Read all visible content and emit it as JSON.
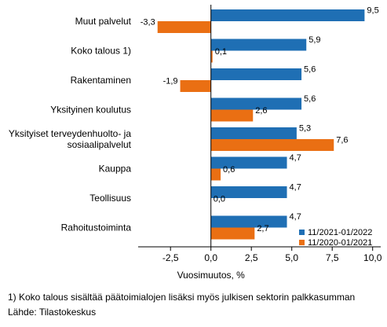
{
  "chart_data": {
    "type": "bar",
    "orientation": "horizontal",
    "categories": [
      [
        "Muut palvelut"
      ],
      [
        "Koko talous 1)"
      ],
      [
        "Rakentaminen"
      ],
      [
        "Yksityinen koulutus"
      ],
      [
        "Yksityiset terveydenhuolto- ja",
        "sosiaalipalvelut"
      ],
      [
        "Kauppa"
      ],
      [
        "Teollisuus"
      ],
      [
        "Rahoitustoiminta"
      ]
    ],
    "series": [
      {
        "name": "11/2021-01/2022",
        "color": "#1f6fb4",
        "values": [
          9.5,
          5.9,
          5.6,
          5.6,
          5.3,
          4.7,
          4.7,
          4.7
        ],
        "labels": [
          "9,5",
          "5,9",
          "5,6",
          "5,6",
          "5,3",
          "4,7",
          "4,7",
          "4,7"
        ]
      },
      {
        "name": "11/2020-01/2021",
        "color": "#ea6f13",
        "values": [
          -3.3,
          0.1,
          -1.9,
          2.6,
          7.6,
          0.6,
          0.0,
          2.7
        ],
        "labels": [
          "-3,3",
          "0,1",
          "-1,9",
          "2,6",
          "7,6",
          "0,6",
          "0,0",
          "2,7"
        ]
      }
    ],
    "xlim": [
      -4.5,
      10.5
    ],
    "xticks": [
      -2.5,
      0,
      2.5,
      5,
      7.5,
      10
    ],
    "xtick_labels": [
      "-2,5",
      "0,0",
      "2,5",
      "5,0",
      "7,5",
      "10,0"
    ],
    "xlabel": "Vuosimuutos, %",
    "ylabel": "",
    "title": "",
    "grid": false,
    "legend_position": "bottom-right"
  },
  "footnotes": {
    "note": "1) Koko talous sisältää päätoimialojen lisäksi myös julkisen sektorin palkkasumman",
    "source": "Lähde: Tilastokeskus"
  }
}
